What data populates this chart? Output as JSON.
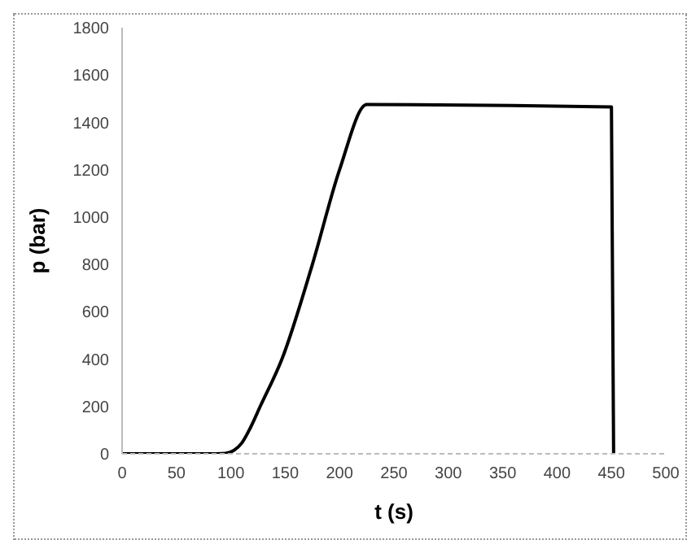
{
  "chart_data": {
    "type": "line",
    "xlabel": "t (s)",
    "ylabel": "p (bar)",
    "x": [
      0,
      80,
      95,
      103,
      110,
      118,
      127,
      147,
      175,
      200,
      225,
      450,
      452
    ],
    "series": [
      {
        "color": "#000000",
        "values": [
          0,
          0,
          2,
          15,
          45,
          110,
          200,
          400,
          800,
          1200,
          1475,
          1465,
          0
        ]
      }
    ],
    "xlim": [
      0,
      500
    ],
    "xticks": [
      0,
      50,
      100,
      150,
      200,
      250,
      300,
      350,
      400,
      450,
      500
    ],
    "ylim": [
      0,
      1800
    ],
    "yticks": [
      0,
      200,
      400,
      600,
      800,
      1000,
      1200,
      1400,
      1600,
      1800
    ],
    "grid": false,
    "legend": false,
    "marker": "none",
    "line_style": "solid"
  }
}
